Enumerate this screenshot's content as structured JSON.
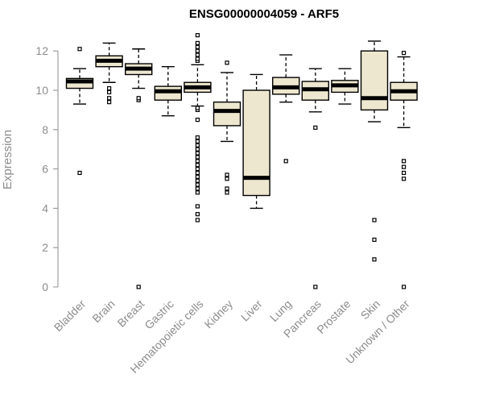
{
  "chart_data": {
    "type": "boxplot",
    "title": "ENSG00000004059 - ARF5",
    "xlabel": "",
    "ylabel": "Expression",
    "ylim": [
      0,
      12.8
    ],
    "yticks": [
      0,
      2,
      4,
      6,
      8,
      10,
      12
    ],
    "grid": false,
    "categories": [
      "Bladder",
      "Brain",
      "Breast",
      "Gastric",
      "Hematopoietic cells",
      "Kidney",
      "Liver",
      "Lung",
      "Pancreas",
      "Prostate",
      "Skin",
      "Unknown / Other"
    ],
    "boxes": [
      {
        "name": "Bladder",
        "whisker_low": 9.3,
        "q1": 10.1,
        "median": 10.45,
        "q3": 10.6,
        "whisker_high": 11.1,
        "outliers": [
          5.8,
          12.1
        ]
      },
      {
        "name": "Brain",
        "whisker_low": 10.4,
        "q1": 11.2,
        "median": 11.5,
        "q3": 11.75,
        "whisker_high": 12.4,
        "outliers": [
          9.4,
          9.6,
          9.9,
          10.1
        ]
      },
      {
        "name": "Breast",
        "whisker_low": 10.1,
        "q1": 10.8,
        "median": 11.1,
        "q3": 11.35,
        "whisker_high": 12.1,
        "outliers": [
          0,
          9.5,
          9.6
        ]
      },
      {
        "name": "Gastric",
        "whisker_low": 8.7,
        "q1": 9.5,
        "median": 9.95,
        "q3": 10.2,
        "whisker_high": 11.2,
        "outliers": []
      },
      {
        "name": "Hematopoietic cells",
        "whisker_low": 9.2,
        "q1": 9.9,
        "median": 10.15,
        "q3": 10.4,
        "whisker_high": 11.3,
        "outliers": [
          3.4,
          3.7,
          4.1,
          4.8,
          5.0,
          5.2,
          5.4,
          5.6,
          5.8,
          6.0,
          6.2,
          6.4,
          6.6,
          6.8,
          7.0,
          7.2,
          7.4,
          7.6,
          8.5,
          9.0,
          9.1,
          11.5,
          11.6,
          11.8,
          12.0,
          12.2,
          12.4,
          12.8
        ]
      },
      {
        "name": "Kidney",
        "whisker_low": 7.4,
        "q1": 8.2,
        "median": 8.95,
        "q3": 9.4,
        "whisker_high": 10.9,
        "outliers": [
          4.8,
          5.0,
          5.5,
          5.7,
          11.4
        ]
      },
      {
        "name": "Liver",
        "whisker_low": 4.0,
        "q1": 4.65,
        "median": 5.55,
        "q3": 10.0,
        "whisker_high": 10.8,
        "outliers": []
      },
      {
        "name": "Lung",
        "whisker_low": 9.4,
        "q1": 9.8,
        "median": 10.15,
        "q3": 10.65,
        "whisker_high": 11.8,
        "outliers": [
          6.4
        ]
      },
      {
        "name": "Pancreas",
        "whisker_low": 8.9,
        "q1": 9.5,
        "median": 10.05,
        "q3": 10.45,
        "whisker_high": 11.1,
        "outliers": [
          0,
          8.1
        ]
      },
      {
        "name": "Prostate",
        "whisker_low": 9.3,
        "q1": 9.9,
        "median": 10.25,
        "q3": 10.5,
        "whisker_high": 11.1,
        "outliers": []
      },
      {
        "name": "Skin",
        "whisker_low": 8.4,
        "q1": 9.0,
        "median": 9.6,
        "q3": 12.0,
        "whisker_high": 12.5,
        "outliers": [
          1.4,
          2.4,
          3.4
        ]
      },
      {
        "name": "Unknown / Other",
        "whisker_low": 8.1,
        "q1": 9.5,
        "median": 9.95,
        "q3": 10.4,
        "whisker_high": 11.7,
        "outliers": [
          0,
          5.5,
          5.8,
          6.1,
          6.4,
          11.9
        ]
      }
    ]
  }
}
